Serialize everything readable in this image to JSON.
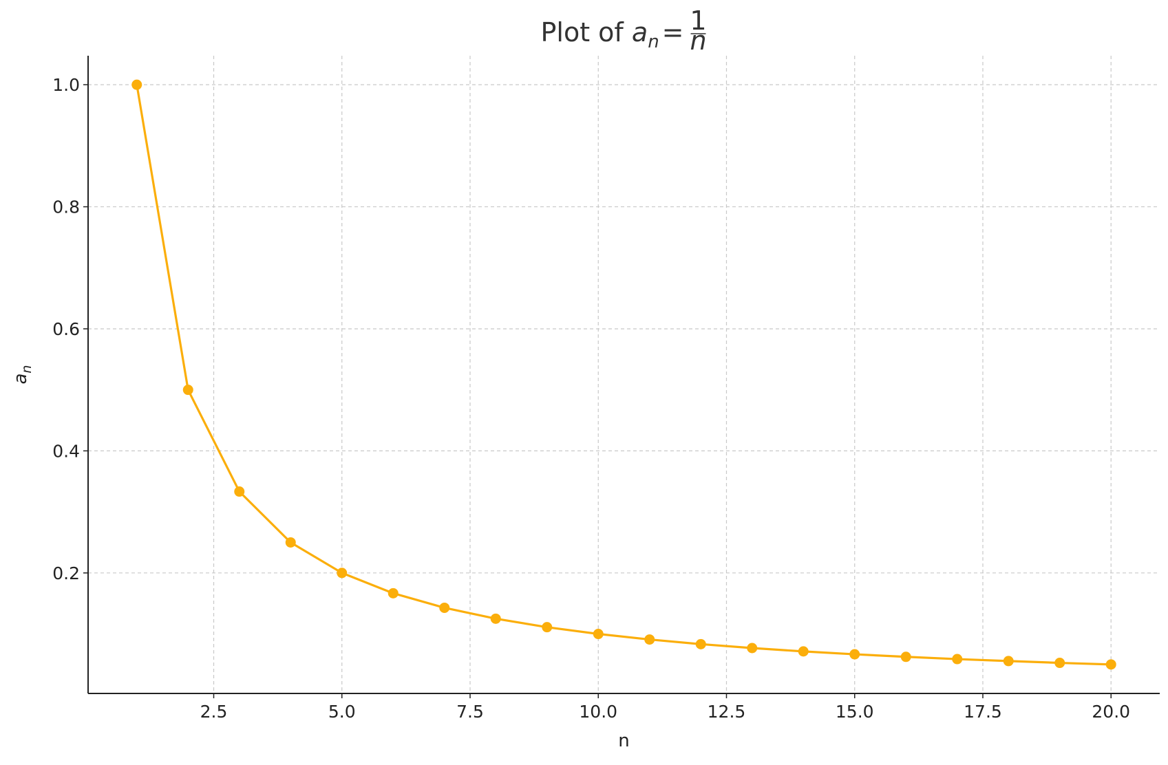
{
  "chart_data": {
    "type": "line",
    "title": {
      "prefix": "Plot of ",
      "lhs_symbol": "a",
      "lhs_subscript": "n",
      "equals": "=",
      "fraction_numerator": "1",
      "fraction_denominator": "n"
    },
    "xlabel": "n",
    "ylabel": {
      "symbol": "a",
      "subscript": "n"
    },
    "x": [
      1,
      2,
      3,
      4,
      5,
      6,
      7,
      8,
      9,
      10,
      11,
      12,
      13,
      14,
      15,
      16,
      17,
      18,
      19,
      20
    ],
    "series": [
      {
        "values": [
          1.0,
          0.5,
          0.3333,
          0.25,
          0.2,
          0.1667,
          0.1429,
          0.125,
          0.1111,
          0.1,
          0.0909,
          0.0833,
          0.0769,
          0.0714,
          0.0667,
          0.0625,
          0.0588,
          0.0556,
          0.0526,
          0.05
        ],
        "color": "#FBAE0B"
      }
    ],
    "xlim": [
      0.05,
      20.95
    ],
    "ylim": [
      0.0025,
      1.0475
    ],
    "xticks": [
      "2.5",
      "5.0",
      "7.5",
      "10.0",
      "12.5",
      "15.0",
      "17.5",
      "20.0"
    ],
    "yticks": [
      "0.2",
      "0.4",
      "0.6",
      "0.8",
      "1.0"
    ],
    "grid": true,
    "legend": "none"
  }
}
